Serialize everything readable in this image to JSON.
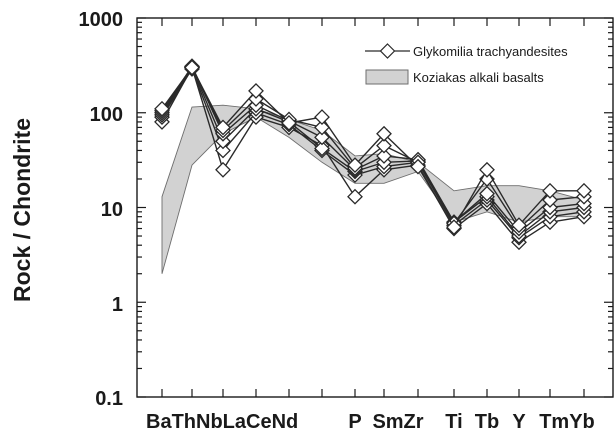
{
  "chart_data": {
    "type": "line",
    "title": "",
    "xlabel": "",
    "ylabel": "Rock / Chondrite",
    "yscale": "log",
    "ylim": [
      0.1,
      1000
    ],
    "y_tick_labels": [
      "1000",
      "100",
      "10",
      "1",
      "0.1"
    ],
    "grid": false,
    "legend_position": "top-right",
    "categories": [
      "Ba",
      "Th",
      "Nb",
      "La",
      "Ce",
      "Nd",
      "P",
      "Sm",
      "Zr",
      "Ti",
      "Tb",
      "Y",
      "Tm",
      "Yb"
    ],
    "x_tick_labels": [
      "BaThNbLaCeNd",
      "P",
      "SmZr",
      "Ti",
      "Tb",
      "Y",
      "TmYb"
    ],
    "legend": {
      "line_label": "Glykomilia trachyandesites",
      "band_label": "Koziakas alkali basalts"
    },
    "series": [
      {
        "values": [
          80,
          300,
          25,
          90,
          70,
          45,
          13,
          25,
          28,
          6,
          11,
          4.3,
          7,
          8
        ]
      },
      {
        "values": [
          90,
          290,
          40,
          100,
          75,
          40,
          22,
          27,
          30,
          6.5,
          12,
          4.8,
          8,
          9
        ]
      },
      {
        "values": [
          95,
          300,
          50,
          110,
          80,
          42,
          24,
          30,
          31,
          7,
          13,
          5,
          9,
          10
        ]
      },
      {
        "values": [
          100,
          310,
          60,
          120,
          82,
          55,
          25,
          35,
          32,
          7,
          14,
          5.5,
          10,
          11
        ]
      },
      {
        "values": [
          105,
          305,
          65,
          140,
          85,
          70,
          26,
          45,
          30,
          6.8,
          20,
          6,
          12,
          13
        ]
      },
      {
        "values": [
          110,
          300,
          70,
          170,
          78,
          90,
          28,
          60,
          27,
          6.2,
          25,
          6.5,
          15,
          15
        ]
      }
    ],
    "band": {
      "lower": [
        2,
        28,
        60,
        90,
        55,
        30,
        18,
        18,
        24,
        7,
        9,
        7,
        8,
        8
      ],
      "upper": [
        13,
        115,
        120,
        110,
        85,
        65,
        35,
        37,
        30,
        15,
        17,
        17,
        15,
        12
      ]
    },
    "colors": {
      "line": "#2a2a2a",
      "marker_fill": "#ffffff",
      "band_fill": "#d2d2d2",
      "band_stroke": "#6e6e6e",
      "axis": "#1a1a1a"
    }
  }
}
